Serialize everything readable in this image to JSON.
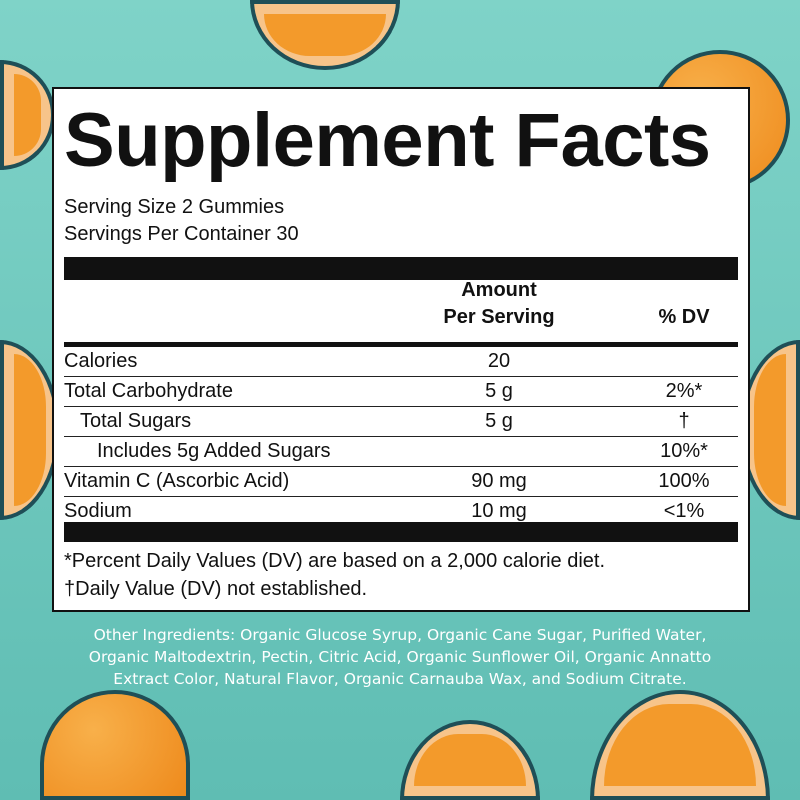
{
  "title": "Supplement Facts",
  "serving_size": "Serving Size 2 Gummies",
  "servings_per_container": "Servings Per Container 30",
  "header": {
    "amount_line1": "Amount",
    "amount_line2": "Per Serving",
    "dv": "% DV"
  },
  "rows": [
    {
      "name": "Calories",
      "amount": "20",
      "dv": ""
    },
    {
      "name": "Total Carbohydrate",
      "amount": "5 g",
      "dv": "2%*"
    },
    {
      "name": "Total Sugars",
      "amount": "5 g",
      "dv": "†"
    },
    {
      "name": "Includes 5g Added Sugars",
      "amount": "",
      "dv": "10%*"
    },
    {
      "name": "Vitamin C (Ascorbic Acid)",
      "amount": "90 mg",
      "dv": "100%"
    },
    {
      "name": "Sodium",
      "amount": "10 mg",
      "dv": "<1%"
    }
  ],
  "footnotes": [
    "*Percent Daily Values (DV) are based on a 2,000 calorie diet.",
    "†Daily Value (DV) not established."
  ],
  "other_ingredients": "Other Ingredients: Organic Glucose Syrup, Organic Cane Sugar, Purified Water, Organic Maltodextrin, Pectin, Citric Acid, Organic Sunflower Oil, Organic Annatto Extract Color, Natural Flavor, Organic Carnauba Wax, and Sodium Citrate.",
  "colors": {
    "background": "#6ec9bf",
    "orange": "#f39a2b",
    "label": "#ffffff",
    "text": "#111111"
  }
}
